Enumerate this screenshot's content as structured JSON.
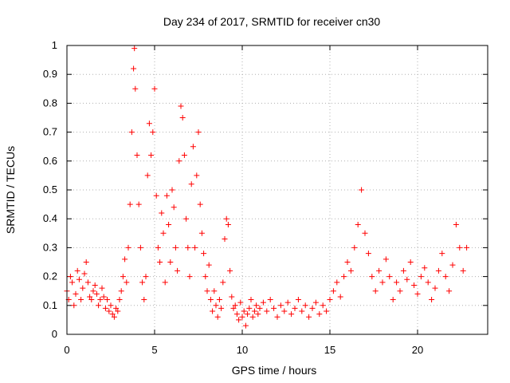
{
  "chart_data": {
    "type": "scatter",
    "title": "Day 234 of 2017, SRMTID for receiver cn30",
    "xlabel": "GPS time / hours",
    "ylabel": "SRMTID / TECUs",
    "xlim": [
      0,
      24
    ],
    "ylim": [
      0,
      1
    ],
    "x_ticks": [
      "0",
      "5",
      "10",
      "15",
      "20"
    ],
    "y_ticks": [
      "0",
      "0.1",
      "0.2",
      "0.3",
      "0.4",
      "0.5",
      "0.6",
      "0.7",
      "0.8",
      "0.9",
      "1"
    ],
    "grid": true,
    "legend": "none",
    "marker": "+",
    "series": [
      {
        "name": "SRMTID",
        "color": "#ff0000",
        "x": [
          0,
          0.1,
          0.2,
          0.3,
          0.4,
          0.5,
          0.6,
          0.7,
          0.8,
          0.9,
          1.0,
          1.1,
          1.2,
          1.3,
          1.4,
          1.5,
          1.6,
          1.7,
          1.8,
          1.9,
          2.0,
          2.1,
          2.2,
          2.3,
          2.4,
          2.5,
          2.6,
          2.7,
          2.8,
          2.9,
          3.0,
          3.1,
          3.2,
          3.3,
          3.4,
          3.5,
          3.6,
          3.7,
          3.8,
          3.85,
          3.9,
          4.0,
          4.1,
          4.2,
          4.3,
          4.4,
          4.5,
          4.6,
          4.7,
          4.8,
          4.9,
          5.0,
          5.1,
          5.2,
          5.3,
          5.4,
          5.5,
          5.6,
          5.7,
          5.8,
          5.9,
          6.0,
          6.1,
          6.2,
          6.3,
          6.4,
          6.5,
          6.6,
          6.7,
          6.8,
          6.9,
          7.0,
          7.1,
          7.2,
          7.3,
          7.4,
          7.5,
          7.6,
          7.7,
          7.8,
          7.9,
          8.0,
          8.1,
          8.2,
          8.3,
          8.4,
          8.5,
          8.6,
          8.7,
          8.8,
          8.9,
          9.0,
          9.1,
          9.2,
          9.3,
          9.4,
          9.5,
          9.6,
          9.7,
          9.8,
          9.9,
          10.0,
          10.1,
          10.2,
          10.3,
          10.4,
          10.5,
          10.6,
          10.7,
          10.8,
          10.9,
          11.0,
          11.2,
          11.4,
          11.6,
          11.8,
          12.0,
          12.2,
          12.4,
          12.6,
          12.8,
          13.0,
          13.2,
          13.4,
          13.6,
          13.8,
          14.0,
          14.2,
          14.4,
          14.6,
          14.8,
          15.0,
          15.2,
          15.4,
          15.6,
          15.8,
          16.0,
          16.2,
          16.4,
          16.6,
          16.8,
          17.0,
          17.2,
          17.4,
          17.6,
          17.8,
          18.0,
          18.2,
          18.4,
          18.6,
          18.8,
          19.0,
          19.2,
          19.4,
          19.6,
          19.8,
          20.0,
          20.2,
          20.4,
          20.6,
          20.8,
          21.0,
          21.2,
          21.4,
          21.6,
          21.8,
          22.0,
          22.2,
          22.4,
          22.6,
          22.8
        ],
        "y": [
          0.15,
          0.12,
          0.2,
          0.18,
          0.1,
          0.14,
          0.22,
          0.19,
          0.12,
          0.16,
          0.21,
          0.25,
          0.18,
          0.13,
          0.12,
          0.15,
          0.17,
          0.14,
          0.1,
          0.12,
          0.16,
          0.13,
          0.09,
          0.12,
          0.08,
          0.1,
          0.07,
          0.06,
          0.09,
          0.08,
          0.12,
          0.15,
          0.2,
          0.26,
          0.18,
          0.3,
          0.45,
          0.7,
          0.92,
          0.99,
          0.85,
          0.62,
          0.45,
          0.3,
          0.18,
          0.12,
          0.2,
          0.55,
          0.73,
          0.62,
          0.7,
          0.85,
          0.48,
          0.3,
          0.25,
          0.42,
          0.35,
          0.18,
          0.48,
          0.38,
          0.25,
          0.5,
          0.44,
          0.3,
          0.22,
          0.6,
          0.79,
          0.75,
          0.62,
          0.4,
          0.3,
          0.2,
          0.52,
          0.65,
          0.3,
          0.55,
          0.7,
          0.45,
          0.35,
          0.28,
          0.2,
          0.15,
          0.24,
          0.12,
          0.08,
          0.15,
          0.1,
          0.06,
          0.12,
          0.09,
          0.18,
          0.33,
          0.4,
          0.38,
          0.22,
          0.13,
          0.09,
          0.1,
          0.07,
          0.05,
          0.11,
          0.06,
          0.08,
          0.03,
          0.07,
          0.09,
          0.12,
          0.06,
          0.08,
          0.1,
          0.07,
          0.09,
          0.11,
          0.08,
          0.12,
          0.09,
          0.06,
          0.1,
          0.08,
          0.11,
          0.07,
          0.09,
          0.12,
          0.08,
          0.1,
          0.06,
          0.09,
          0.11,
          0.07,
          0.1,
          0.08,
          0.12,
          0.15,
          0.18,
          0.13,
          0.2,
          0.25,
          0.22,
          0.3,
          0.38,
          0.5,
          0.35,
          0.28,
          0.2,
          0.15,
          0.22,
          0.18,
          0.26,
          0.2,
          0.12,
          0.18,
          0.15,
          0.22,
          0.19,
          0.25,
          0.17,
          0.14,
          0.2,
          0.23,
          0.18,
          0.12,
          0.16,
          0.22,
          0.28,
          0.2,
          0.15,
          0.24,
          0.38,
          0.3,
          0.22,
          0.3
        ]
      }
    ]
  }
}
